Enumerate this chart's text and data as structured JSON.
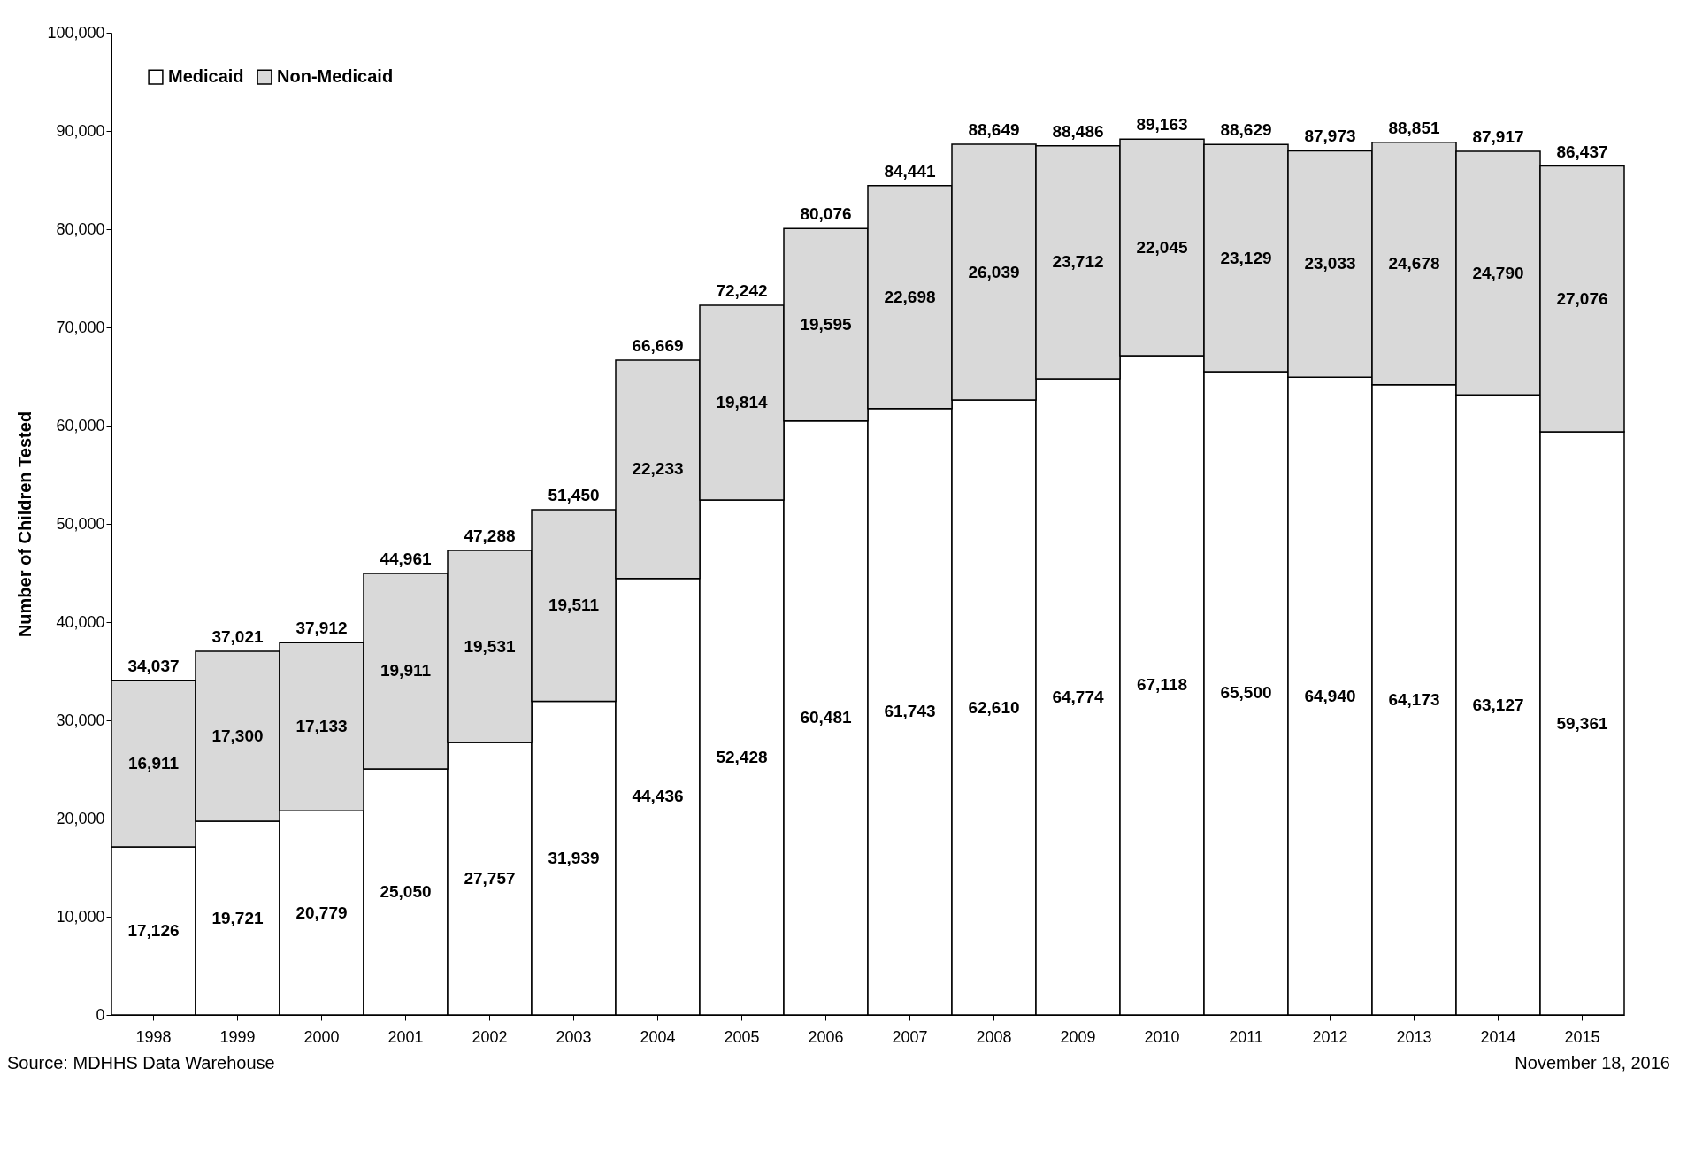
{
  "chart_data": {
    "type": "bar",
    "ylabel": "Number of Children Tested",
    "categories": [
      "1998",
      "1999",
      "2000",
      "2001",
      "2002",
      "2003",
      "2004",
      "2005",
      "2006",
      "2007",
      "2008",
      "2009",
      "2010",
      "2011",
      "2012",
      "2013",
      "2014",
      "2015"
    ],
    "series": [
      {
        "name": "Medicaid",
        "color": "#ffffff",
        "values": [
          17126,
          19721,
          20779,
          25050,
          27757,
          31939,
          44436,
          52428,
          60481,
          61743,
          62610,
          64774,
          67118,
          65500,
          64940,
          64173,
          63127,
          59361
        ],
        "value_labels": [
          "17,126",
          "19,721",
          "20,779",
          "25,050",
          "27,757",
          "31,939",
          "44,436",
          "52,428",
          "60,481",
          "61,743",
          "62,610",
          "64,774",
          "67,118",
          "65,500",
          "64,940",
          "64,173",
          "63,127",
          "59,361"
        ]
      },
      {
        "name": "Non-Medicaid",
        "color": "#d9d9d9",
        "values": [
          16911,
          17300,
          17133,
          19911,
          19531,
          19511,
          22233,
          19814,
          19595,
          22698,
          26039,
          23712,
          22045,
          23129,
          23033,
          24678,
          24790,
          27076
        ],
        "value_labels": [
          "16,911",
          "17,300",
          "17,133",
          "19,911",
          "19,531",
          "19,511",
          "22,233",
          "19,814",
          "19,595",
          "22,698",
          "26,039",
          "23,712",
          "22,045",
          "23,129",
          "23,033",
          "24,678",
          "24,790",
          "27,076"
        ]
      }
    ],
    "stacked": true,
    "totals": [
      "34,037",
      "37,021",
      "37,912",
      "44,961",
      "47,288",
      "51,450",
      "66,669",
      "72,242",
      "80,076",
      "84,441",
      "88,649",
      "88,486",
      "89,163",
      "88,629",
      "87,973",
      "88,851",
      "87,917",
      "86,437"
    ],
    "ylim": [
      0,
      100000
    ],
    "yticks": [
      0,
      {
        "value": 10000,
        "label": "10,000"
      },
      {
        "value": 20000,
        "label": "20,000"
      },
      {
        "value": 30000,
        "label": "30,000"
      },
      {
        "value": 40000,
        "label": "40,000"
      },
      {
        "value": 50000,
        "label": "50,000"
      },
      {
        "value": 60000,
        "label": "60,000"
      },
      {
        "value": 70000,
        "label": "70,000"
      },
      {
        "value": 80000,
        "label": "80,000"
      },
      {
        "value": 90000,
        "label": "90,000"
      },
      {
        "value": 100000,
        "label": "100,000"
      }
    ],
    "grid": false,
    "legend": "top left",
    "annotations": [
      "Source: MDHHS Data Warehouse",
      "November 18, 2016"
    ]
  }
}
